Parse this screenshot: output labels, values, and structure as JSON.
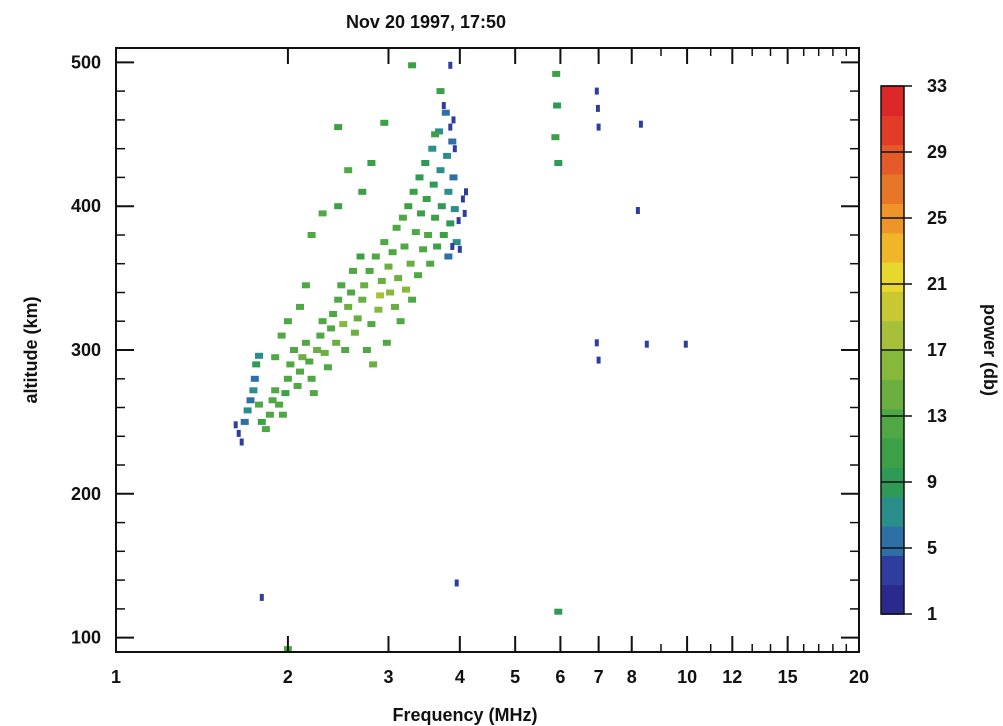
{
  "chart_data": {
    "type": "scatter",
    "title": "Nov 20 1997, 17:50",
    "xlabel": "Frequency (MHz)",
    "ylabel": "altitude (km)",
    "xscale": "log",
    "xlim": [
      1,
      20
    ],
    "ylim": [
      90,
      510
    ],
    "x_ticks": [
      1,
      2,
      3,
      4,
      5,
      6,
      7,
      8,
      10,
      12,
      15,
      20
    ],
    "x_tick_labels": [
      "1",
      "2",
      "3",
      "4",
      "5",
      "6",
      "7",
      "8",
      "10",
      "12",
      "15",
      "20"
    ],
    "y_ticks": [
      100,
      200,
      300,
      400,
      500
    ],
    "y_tick_labels": [
      "100",
      "200",
      "300",
      "400",
      "500"
    ],
    "grid": false,
    "colorbar": {
      "label": "power (db)",
      "range": [
        1,
        33
      ],
      "ticks": [
        1,
        5,
        9,
        13,
        17,
        21,
        25,
        29,
        33
      ],
      "tick_labels": [
        "1",
        "5",
        "9",
        "13",
        "17",
        "21",
        "25",
        "29",
        "33"
      ],
      "colors": [
        "#2a2a8c",
        "#2f3d9e",
        "#2e6fa6",
        "#2a8f8a",
        "#2f9a55",
        "#3ca046",
        "#4fa843",
        "#6aaf3f",
        "#86b83a",
        "#a6c03a",
        "#c8c832",
        "#e8d72c",
        "#f1b52a",
        "#ee9428",
        "#e87628",
        "#e45a28",
        "#e03c28",
        "#dc2828"
      ]
    },
    "points": [
      [
        1.68,
        250,
        6
      ],
      [
        1.7,
        258,
        7
      ],
      [
        1.72,
        265,
        6
      ],
      [
        1.74,
        272,
        8
      ],
      [
        1.75,
        280,
        6
      ],
      [
        1.76,
        290,
        9
      ],
      [
        1.78,
        296,
        7
      ],
      [
        1.62,
        248,
        3
      ],
      [
        1.64,
        242,
        3
      ],
      [
        1.66,
        236,
        4
      ],
      [
        1.78,
        262,
        12
      ],
      [
        1.8,
        250,
        11
      ],
      [
        1.83,
        245,
        12
      ],
      [
        1.86,
        255,
        12
      ],
      [
        1.88,
        265,
        13
      ],
      [
        1.9,
        272,
        12
      ],
      [
        1.93,
        262,
        13
      ],
      [
        1.96,
        255,
        12
      ],
      [
        1.98,
        270,
        11
      ],
      [
        2.0,
        280,
        12
      ],
      [
        2.02,
        290,
        13
      ],
      [
        2.05,
        300,
        12
      ],
      [
        2.08,
        275,
        13
      ],
      [
        2.1,
        285,
        12
      ],
      [
        2.12,
        295,
        14
      ],
      [
        2.15,
        305,
        12
      ],
      [
        2.18,
        292,
        13
      ],
      [
        2.2,
        280,
        12
      ],
      [
        2.22,
        270,
        12
      ],
      [
        2.25,
        300,
        14
      ],
      [
        2.28,
        310,
        13
      ],
      [
        2.3,
        320,
        12
      ],
      [
        2.32,
        298,
        14
      ],
      [
        2.35,
        288,
        13
      ],
      [
        2.38,
        315,
        12
      ],
      [
        2.4,
        325,
        13
      ],
      [
        2.43,
        305,
        15
      ],
      [
        2.45,
        335,
        12
      ],
      [
        2.48,
        345,
        12
      ],
      [
        2.5,
        318,
        16
      ],
      [
        2.52,
        300,
        13
      ],
      [
        2.55,
        330,
        14
      ],
      [
        2.58,
        340,
        13
      ],
      [
        2.6,
        355,
        12
      ],
      [
        2.62,
        312,
        15
      ],
      [
        2.65,
        322,
        14
      ],
      [
        2.68,
        365,
        11
      ],
      [
        2.7,
        335,
        15
      ],
      [
        2.72,
        345,
        14
      ],
      [
        2.75,
        300,
        12
      ],
      [
        2.78,
        355,
        13
      ],
      [
        2.8,
        318,
        13
      ],
      [
        2.82,
        290,
        14
      ],
      [
        2.85,
        365,
        12
      ],
      [
        2.88,
        328,
        16
      ],
      [
        2.9,
        338,
        17
      ],
      [
        2.92,
        348,
        15
      ],
      [
        2.95,
        375,
        12
      ],
      [
        2.98,
        305,
        13
      ],
      [
        3.0,
        358,
        14
      ],
      [
        3.02,
        340,
        16
      ],
      [
        3.05,
        368,
        13
      ],
      [
        3.08,
        330,
        15
      ],
      [
        3.1,
        385,
        12
      ],
      [
        3.12,
        350,
        14
      ],
      [
        3.15,
        320,
        13
      ],
      [
        3.18,
        392,
        12
      ],
      [
        3.2,
        372,
        13
      ],
      [
        3.22,
        342,
        16
      ],
      [
        3.25,
        400,
        11
      ],
      [
        3.28,
        360,
        14
      ],
      [
        3.3,
        335,
        12
      ],
      [
        3.32,
        410,
        10
      ],
      [
        3.35,
        382,
        12
      ],
      [
        3.38,
        352,
        13
      ],
      [
        3.4,
        420,
        9
      ],
      [
        3.42,
        395,
        11
      ],
      [
        3.45,
        370,
        12
      ],
      [
        3.48,
        430,
        9
      ],
      [
        3.5,
        405,
        10
      ],
      [
        3.52,
        380,
        12
      ],
      [
        3.55,
        360,
        13
      ],
      [
        3.58,
        440,
        8
      ],
      [
        3.6,
        415,
        9
      ],
      [
        3.62,
        392,
        10
      ],
      [
        3.65,
        372,
        11
      ],
      [
        3.68,
        452,
        7
      ],
      [
        3.7,
        425,
        8
      ],
      [
        3.72,
        400,
        9
      ],
      [
        3.75,
        380,
        10
      ],
      [
        3.78,
        465,
        6
      ],
      [
        3.8,
        435,
        7
      ],
      [
        3.82,
        410,
        8
      ],
      [
        3.85,
        388,
        9
      ],
      [
        3.88,
        445,
        5
      ],
      [
        3.9,
        420,
        6
      ],
      [
        3.92,
        398,
        7
      ],
      [
        3.95,
        375,
        8
      ],
      [
        3.75,
        470,
        4
      ],
      [
        3.85,
        455,
        3
      ],
      [
        3.9,
        460,
        3
      ],
      [
        3.92,
        440,
        4
      ],
      [
        3.98,
        390,
        4
      ],
      [
        4.0,
        370,
        3
      ],
      [
        4.05,
        405,
        4
      ],
      [
        4.08,
        395,
        3
      ],
      [
        4.1,
        410,
        4
      ],
      [
        3.82,
        365,
        5
      ],
      [
        3.88,
        372,
        4
      ],
      [
        2.45,
        455,
        11
      ],
      [
        2.95,
        458,
        11
      ],
      [
        3.3,
        498,
        11
      ],
      [
        3.62,
        450,
        10
      ],
      [
        3.7,
        480,
        11
      ],
      [
        2.8,
        430,
        10
      ],
      [
        2.55,
        425,
        12
      ],
      [
        2.45,
        400,
        11
      ],
      [
        2.3,
        395,
        12
      ],
      [
        2.7,
        410,
        11
      ],
      [
        2.2,
        380,
        12
      ],
      [
        2.15,
        345,
        12
      ],
      [
        2.1,
        330,
        13
      ],
      [
        2.0,
        320,
        12
      ],
      [
        1.95,
        310,
        12
      ],
      [
        1.9,
        295,
        12
      ],
      [
        3.85,
        498,
        3
      ],
      [
        1.8,
        128,
        3
      ],
      [
        2.0,
        92,
        12
      ],
      [
        3.95,
        138,
        3
      ],
      [
        5.95,
        118,
        9
      ],
      [
        5.9,
        492,
        10
      ],
      [
        5.92,
        470,
        9
      ],
      [
        5.88,
        448,
        10
      ],
      [
        5.95,
        430,
        9
      ],
      [
        6.95,
        480,
        3
      ],
      [
        6.98,
        468,
        3
      ],
      [
        7.0,
        455,
        3
      ],
      [
        8.3,
        457,
        3
      ],
      [
        8.2,
        397,
        3
      ],
      [
        6.95,
        305,
        3
      ],
      [
        7.0,
        293,
        3
      ],
      [
        8.5,
        304,
        3
      ],
      [
        9.95,
        304,
        3
      ]
    ]
  }
}
